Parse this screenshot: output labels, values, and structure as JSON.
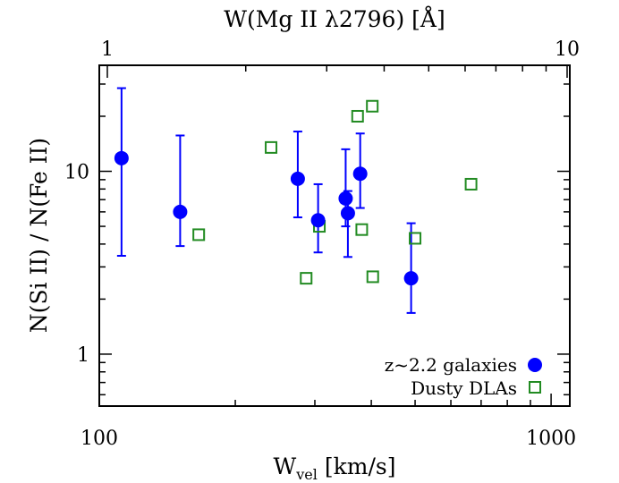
{
  "chart_data": {
    "type": "scatter",
    "xlabel_main": "W",
    "xlabel_sub": "vel",
    "xlabel_unit": "[km/s]",
    "ylabel": "N(Si II) / N(Fe II)",
    "toplabel": "W(Mg II λ2796)  [Å]",
    "xscale": "log",
    "yscale": "log",
    "xlim": [
      100,
      1100
    ],
    "ylim": [
      0.52,
      38
    ],
    "top_axis": {
      "xlim": [
        1,
        10
      ],
      "ticks": [
        1,
        10
      ],
      "tick_labels": [
        "1",
        "10"
      ]
    },
    "x_ticks": [
      100,
      1000
    ],
    "x_tick_labels": [
      "100",
      "1000"
    ],
    "y_ticks": [
      1,
      10
    ],
    "y_tick_labels": [
      "1",
      "10"
    ],
    "grid": false,
    "legend_position": "bottom-right",
    "series": [
      {
        "name": "z~2.2 galaxies",
        "marker": "filled-circle",
        "color": "#0000ff",
        "points": [
          {
            "x": 112,
            "y": 11.8,
            "ylo": 3.45,
            "yhi": 28.5
          },
          {
            "x": 151,
            "y": 6.0,
            "ylo": 3.9,
            "yhi": 15.7
          },
          {
            "x": 275,
            "y": 9.1,
            "ylo": 5.6,
            "yhi": 16.5
          },
          {
            "x": 305,
            "y": 5.4,
            "ylo": 3.6,
            "yhi": 8.5
          },
          {
            "x": 351,
            "y": 7.1,
            "ylo": 5.0,
            "yhi": 13.2
          },
          {
            "x": 355,
            "y": 5.9,
            "ylo": 3.4,
            "yhi": 7.8
          },
          {
            "x": 378,
            "y": 9.7,
            "ylo": 6.3,
            "yhi": 16.1
          },
          {
            "x": 490,
            "y": 2.6,
            "ylo": 1.68,
            "yhi": 5.2
          }
        ]
      },
      {
        "name": "Dusty DLAs",
        "marker": "open-square",
        "color": "#228b22",
        "points": [
          {
            "x": 166,
            "y": 4.5
          },
          {
            "x": 240,
            "y": 13.5
          },
          {
            "x": 287,
            "y": 2.6
          },
          {
            "x": 307,
            "y": 5.0
          },
          {
            "x": 373,
            "y": 20.0
          },
          {
            "x": 381,
            "y": 4.8
          },
          {
            "x": 402,
            "y": 22.7
          },
          {
            "x": 403,
            "y": 2.65
          },
          {
            "x": 500,
            "y": 4.3
          },
          {
            "x": 665,
            "y": 8.5
          }
        ]
      }
    ]
  }
}
